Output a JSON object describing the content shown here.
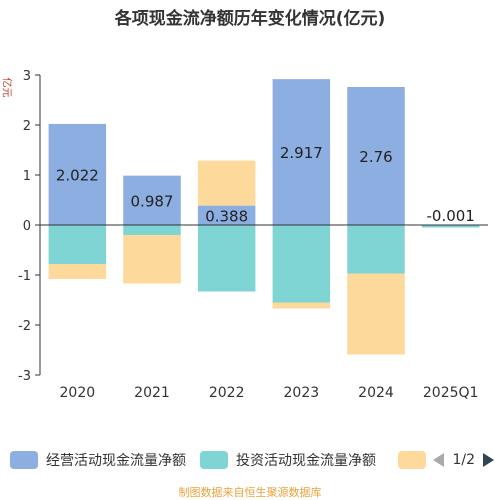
{
  "chart_data": {
    "type": "bar",
    "stacked": true,
    "title": "各项现金流净额历年变化情况(亿元)",
    "ylabel": "亿元",
    "categories": [
      "2020",
      "2021",
      "2022",
      "2023",
      "2024",
      "2025Q1"
    ],
    "ylim": [
      -3,
      3
    ],
    "yticks": [
      3,
      2,
      1,
      0,
      -1,
      -2,
      -3
    ],
    "series": [
      {
        "name": "经营活动现金流量净额",
        "color": "#8daee0",
        "values": [
          2.022,
          0.987,
          0.388,
          2.917,
          2.76,
          -0.001
        ],
        "labels": [
          "2.022",
          "0.987",
          "0.388",
          "2.917",
          "2.76",
          "-0.001"
        ]
      },
      {
        "name": "投资活动现金流量净额",
        "color": "#7fd5d3",
        "values": [
          -0.78,
          -0.2,
          -1.33,
          -1.55,
          -0.97,
          -0.05
        ]
      },
      {
        "name": "",
        "color": "#fdd99b",
        "values": [
          -0.3,
          -0.97,
          0.9,
          -0.12,
          -1.62,
          0
        ]
      }
    ]
  },
  "legend": {
    "items": [
      "经营活动现金流量净额",
      "投资活动现金流量净额"
    ],
    "page": "1/2"
  },
  "source": "制图数据来自恒生聚源数据库"
}
